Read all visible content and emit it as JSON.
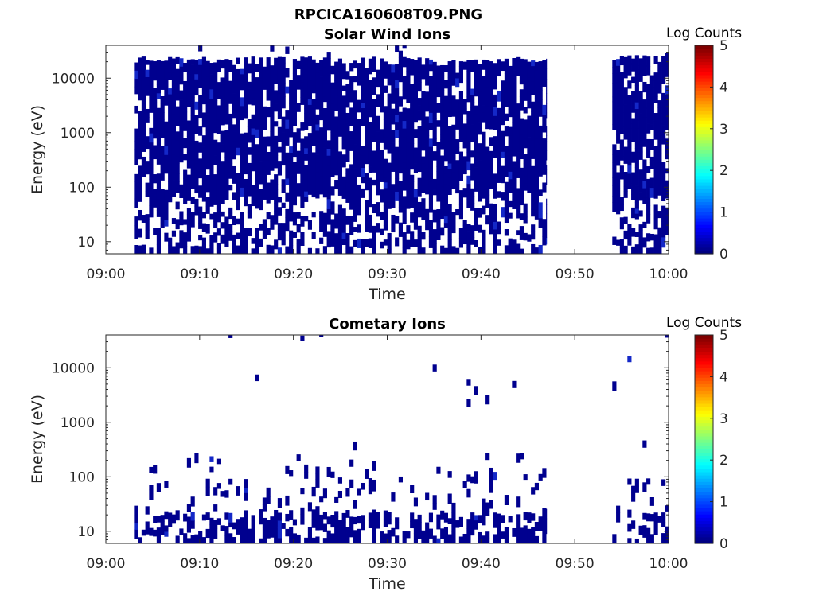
{
  "figure": {
    "title": "RPCICA160608T09.PNG"
  },
  "chart_data": [
    {
      "type": "heatmap",
      "title": "Solar Wind Ions",
      "xlabel": "Time",
      "ylabel": "Energy (eV)",
      "x_ticks": [
        "09:00",
        "09:10",
        "09:20",
        "09:30",
        "09:40",
        "09:50",
        "10:00"
      ],
      "y_ticks": [
        "10",
        "100",
        "1000",
        "10000"
      ],
      "y_scale": "log",
      "xlim": [
        "09:00",
        "10:00"
      ],
      "ylim": [
        6,
        40000
      ],
      "colorbar": {
        "label": "Log Counts",
        "ticks": [
          "0",
          "1",
          "2",
          "3",
          "4",
          "5"
        ],
        "range": [
          0,
          5
        ],
        "colormap": "jet"
      },
      "observed": [
        {
          "t_start": "09:03",
          "t_end": "09:47",
          "e_min": 6,
          "e_max": 25000,
          "log_counts": 0
        },
        {
          "t_start": "09:54",
          "t_end": "10:00",
          "e_min": 6,
          "e_max": 30000,
          "log_counts": 0
        }
      ],
      "data_gap": {
        "t_start": "09:47",
        "t_end": "09:54"
      }
    },
    {
      "type": "heatmap",
      "title": "Cometary Ions",
      "xlabel": "Time",
      "ylabel": "Energy (eV)",
      "x_ticks": [
        "09:00",
        "09:10",
        "09:20",
        "09:30",
        "09:40",
        "09:50",
        "10:00"
      ],
      "y_ticks": [
        "10",
        "100",
        "1000",
        "10000"
      ],
      "y_scale": "log",
      "xlim": [
        "09:00",
        "10:00"
      ],
      "ylim": [
        6,
        40000
      ],
      "colorbar": {
        "label": "Log Counts",
        "ticks": [
          "0",
          "1",
          "2",
          "3",
          "4",
          "5"
        ],
        "range": [
          0,
          5
        ],
        "colormap": "jet"
      },
      "observed": [
        {
          "t_start": "09:03",
          "t_end": "09:47",
          "e_min": 6,
          "e_max": 300,
          "log_counts": 0
        },
        {
          "t_start": "09:54",
          "t_end": "10:00",
          "e_min": 6,
          "e_max": 800,
          "log_counts": 0
        }
      ],
      "data_gap": {
        "t_start": "09:47",
        "t_end": "09:54"
      }
    }
  ],
  "colors": {
    "data": "#00008f",
    "data_light": "#1428c8",
    "axis": "#262626"
  }
}
